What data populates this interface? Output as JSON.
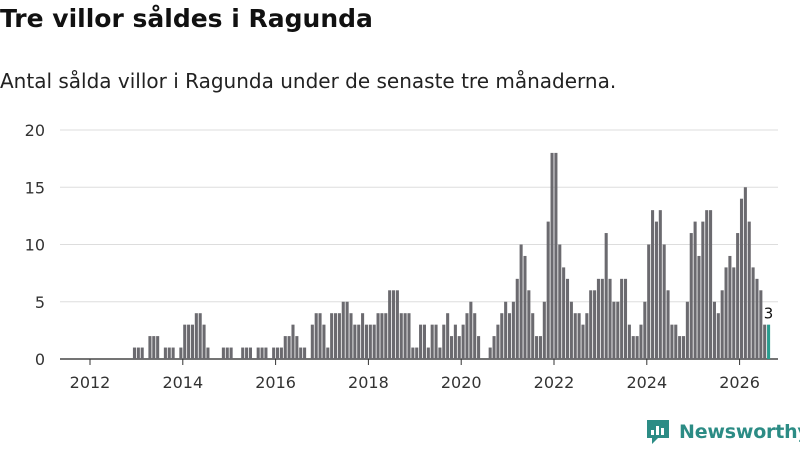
{
  "header": {
    "title": "Tre villor såldes i Ragunda",
    "subtitle": "Antal sålda villor i Ragunda under de senaste tre månaderna."
  },
  "brand": {
    "name": "Newsworthy"
  },
  "colors": {
    "bar": "#6b6a6f",
    "highlight": "#2a9d8f",
    "grid": "#dddddd",
    "brand": "#2c8c85"
  },
  "chart_data": {
    "type": "bar",
    "title": "Tre villor såldes i Ragunda",
    "subtitle": "Antal sålda villor i Ragunda under de senaste tre månaderna.",
    "xlabel": "",
    "ylabel": "",
    "ylim": [
      0,
      20
    ],
    "y_ticks": [
      0,
      5,
      10,
      15,
      20
    ],
    "x_ticks": [
      "2012",
      "2014",
      "2016",
      "2018",
      "2020",
      "2022",
      "2024",
      "2026"
    ],
    "x_tick_positions": [
      2012,
      2014,
      2016,
      2018,
      2020,
      2022,
      2024,
      2026
    ],
    "x_start": 2012.0,
    "x_end": 2026.25,
    "step": 0.08333,
    "grid": true,
    "values": [
      0,
      0,
      0,
      0,
      0,
      0,
      0,
      0,
      0,
      0,
      0,
      1,
      1,
      1,
      0,
      2,
      2,
      2,
      0,
      1,
      1,
      1,
      0,
      1,
      3,
      3,
      3,
      4,
      4,
      3,
      1,
      0,
      0,
      0,
      1,
      1,
      1,
      0,
      0,
      1,
      1,
      1,
      0,
      1,
      1,
      1,
      0,
      1,
      1,
      1,
      2,
      2,
      3,
      2,
      1,
      1,
      0,
      3,
      4,
      4,
      3,
      1,
      4,
      4,
      4,
      5,
      5,
      4,
      3,
      3,
      4,
      3,
      3,
      3,
      4,
      4,
      4,
      6,
      6,
      6,
      4,
      4,
      4,
      1,
      1,
      3,
      3,
      1,
      3,
      3,
      1,
      3,
      4,
      2,
      3,
      2,
      3,
      4,
      5,
      4,
      2,
      0,
      0,
      1,
      2,
      3,
      4,
      5,
      4,
      5,
      7,
      10,
      9,
      6,
      4,
      2,
      2,
      5,
      12,
      18,
      18,
      10,
      8,
      7,
      5,
      4,
      4,
      3,
      4,
      6,
      6,
      7,
      7,
      11,
      7,
      5,
      5,
      7,
      7,
      3,
      2,
      2,
      3,
      5,
      10,
      13,
      12,
      13,
      10,
      6,
      3,
      3,
      2,
      2,
      5,
      11,
      12,
      9,
      12,
      13,
      13,
      5,
      4,
      6,
      8,
      9,
      8,
      11,
      14,
      15,
      12,
      8,
      7,
      6,
      3,
      3
    ],
    "highlight_last": true,
    "annotation": {
      "label": "3",
      "value": 3
    }
  }
}
